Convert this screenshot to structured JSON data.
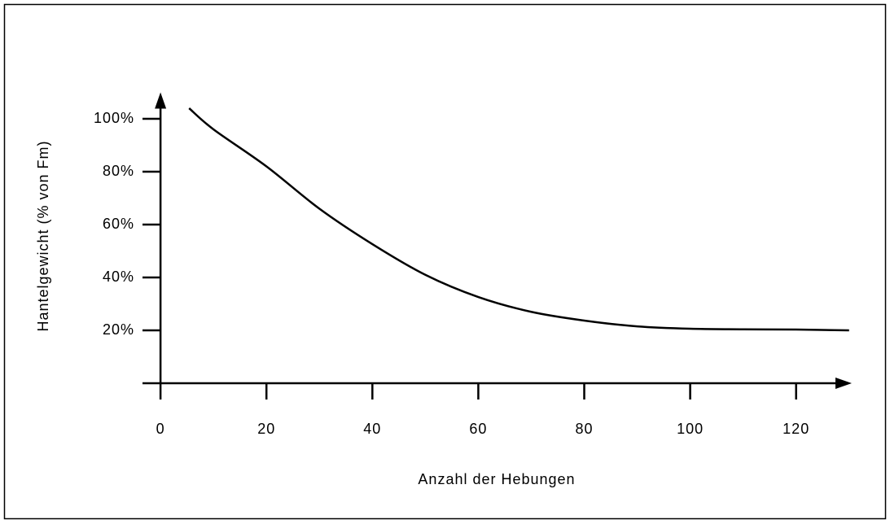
{
  "chart_data": {
    "type": "line",
    "x_label": "Anzahl der Hebungen",
    "y_label": "Hantelgewicht (% von Fm)",
    "x": [
      5.4,
      10,
      20,
      30,
      40,
      50,
      60,
      70,
      80,
      90,
      100,
      110,
      120,
      130
    ],
    "series": [
      {
        "name": "Hantelgewicht",
        "color": "#000000",
        "values": [
          104,
          96,
          82,
          66,
          52.6,
          41,
          32.6,
          27,
          23.7,
          21.5,
          20.6,
          20.4,
          20.3,
          20
        ]
      }
    ],
    "xlim": [
      -3.4,
      130.5
    ],
    "ylim": [
      0,
      110
    ],
    "xticks": [
      0,
      20,
      40,
      60,
      80,
      100,
      120
    ],
    "yticks": [
      {
        "value": 20,
        "label": "20%"
      },
      {
        "value": 40,
        "label": "40%"
      },
      {
        "value": 60,
        "label": "60%"
      },
      {
        "value": 80,
        "label": "80%"
      },
      {
        "value": 100,
        "label": "100%"
      }
    ]
  }
}
